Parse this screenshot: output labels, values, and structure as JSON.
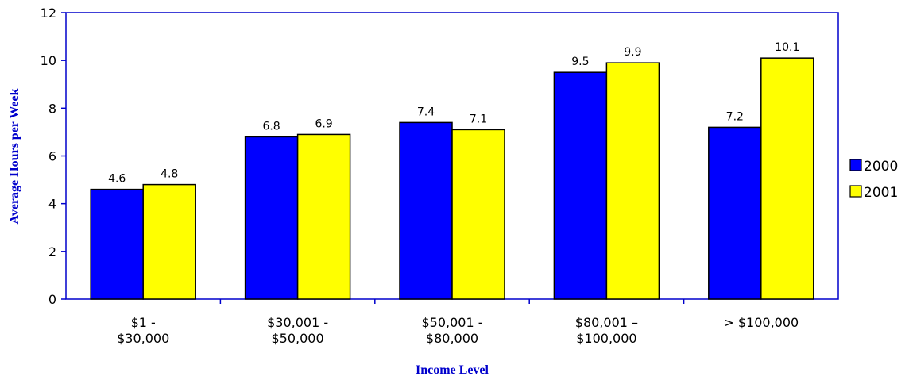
{
  "chart_data": {
    "type": "bar",
    "title": "",
    "xlabel": "Income Level",
    "ylabel": "Average Hours per Week",
    "ylim": [
      0,
      12
    ],
    "yticks": [
      0,
      2,
      4,
      6,
      8,
      10,
      12
    ],
    "grid": false,
    "legend_position": "right",
    "categories": [
      [
        "$1 -",
        "$30,000"
      ],
      [
        "$30,001 -",
        "$50,000"
      ],
      [
        "$50,001 -",
        "$80,000"
      ],
      [
        "$80,001 –",
        "$100,000"
      ],
      [
        "> $100,000"
      ]
    ],
    "series": [
      {
        "name": "2000",
        "color": "#0000ff",
        "values": [
          4.6,
          6.8,
          7.4,
          9.5,
          7.2
        ]
      },
      {
        "name": "2001",
        "color": "#ffff00",
        "values": [
          4.8,
          6.9,
          7.1,
          9.9,
          10.1
        ]
      }
    ],
    "data_labels": [
      [
        "4.6",
        "6.8",
        "7.4",
        "9.5",
        "7.2"
      ],
      [
        "4.8",
        "6.9",
        "7.1",
        "9.9",
        "10.1"
      ]
    ],
    "axis_color": "#0000cc"
  }
}
